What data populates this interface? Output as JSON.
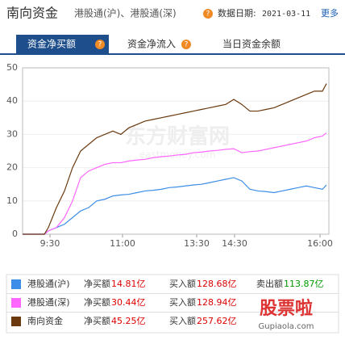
{
  "header": {
    "title": "南向资金",
    "subtitle": "港股通(沪)、港股通(深)",
    "date_label": "数据日期:",
    "date": "2021-03-11",
    "more": "更多"
  },
  "tabs": [
    "资金净买额",
    "资金净流入",
    "当日资金余额"
  ],
  "watermark": {
    "brand": "东方财富网",
    "url": "eastmoney.com",
    "logo": "股票啦",
    "logo_url": "Gupiaola.com"
  },
  "chart_data": {
    "type": "line",
    "grid": true,
    "x": [
      0,
      27,
      32,
      42,
      52,
      62,
      72,
      82,
      92,
      102,
      112,
      122,
      132,
      142,
      152,
      162,
      172,
      182,
      192,
      202,
      212,
      222,
      232,
      242,
      252,
      262,
      272,
      282,
      292,
      302,
      312,
      322,
      332,
      342,
      352,
      362,
      372,
      377
    ],
    "xlim": [
      0,
      380
    ],
    "xticks": [
      {
        "value": 34,
        "label": "9:30"
      },
      {
        "value": 124,
        "label": "11:00"
      },
      {
        "value": 216,
        "label": "13:30"
      },
      {
        "value": 263,
        "label": "14:30"
      },
      {
        "value": 369,
        "label": "16:00"
      }
    ],
    "ylim": [
      0,
      50
    ],
    "yticks": [
      0,
      10,
      20,
      30,
      40,
      50
    ],
    "series": [
      {
        "name": "港股通(沪)",
        "color": "#3c8ee8",
        "values": [
          0,
          0,
          1,
          2,
          3,
          5,
          7,
          8,
          10,
          10.5,
          11.5,
          11.8,
          12,
          12.5,
          13,
          13.2,
          13.5,
          14,
          14.2,
          14.5,
          14.8,
          15,
          15.5,
          16,
          16.5,
          17,
          16,
          13.5,
          13,
          12.8,
          12.5,
          13,
          13.5,
          14,
          14.5,
          14,
          13.5,
          14.81
        ]
      },
      {
        "name": "港股通(深)",
        "color": "#ff66ff",
        "values": [
          0,
          0,
          1,
          2,
          5,
          10,
          17,
          19,
          20,
          21,
          21.5,
          21.5,
          22,
          22.3,
          22.5,
          23,
          23.3,
          23.5,
          23.8,
          24,
          24.5,
          24.7,
          25,
          25.2,
          25.5,
          25.7,
          24.5,
          24.8,
          25,
          25.5,
          26,
          26.5,
          27,
          27.5,
          28,
          29,
          29.5,
          30.44
        ]
      },
      {
        "name": "南向资金",
        "color": "#6b3a0f",
        "values": [
          0,
          0,
          2,
          8,
          13,
          20,
          25,
          27,
          29,
          30,
          31,
          30,
          32,
          33,
          34,
          34.5,
          35,
          35.5,
          36,
          36.5,
          37,
          37.5,
          38,
          38.5,
          39,
          40.5,
          39,
          37,
          37,
          37.5,
          38,
          39,
          40,
          41,
          42,
          43,
          43,
          45.25
        ]
      }
    ]
  },
  "legend_table": {
    "net_label": "净买额",
    "buy_label": "买入额",
    "sell_label": "卖出额",
    "rows": [
      {
        "net": "14.81亿",
        "buy": "128.68亿",
        "sell": "113.87亿"
      },
      {
        "net": "30.44亿",
        "buy": "128.94亿"
      },
      {
        "net": "45.25亿",
        "buy": "257.62亿"
      }
    ]
  }
}
